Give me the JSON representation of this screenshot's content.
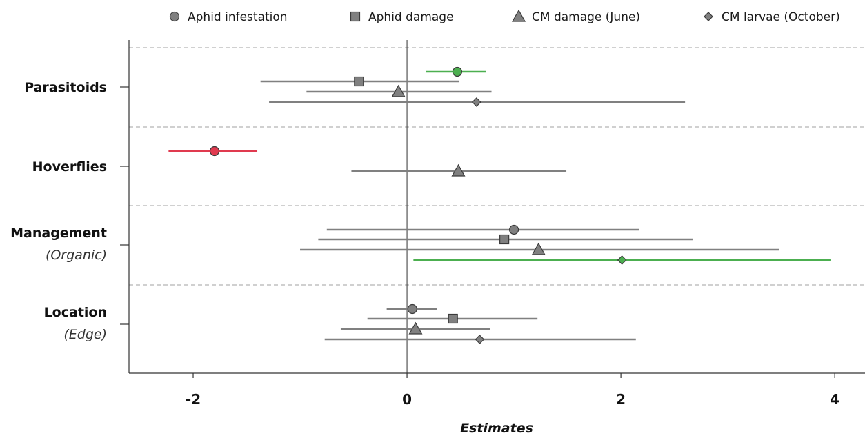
{
  "chart_data": {
    "type": "forest",
    "xlabel": "Estimates",
    "xlim": [
      -2.6,
      4.27
    ],
    "xticks": [
      -2,
      0,
      2,
      4
    ],
    "xtick_labels": [
      "-2",
      "0",
      "2",
      "4"
    ],
    "legend_position": "top",
    "legend": [
      {
        "name": "Aphid infestation",
        "marker": "circle"
      },
      {
        "name": "Aphid damage",
        "marker": "square"
      },
      {
        "name": "CM damage (June)",
        "marker": "triangle"
      },
      {
        "name": "CM larvae (October)",
        "marker": "diamond"
      }
    ],
    "colors": {
      "neutral": "#808080",
      "positive": "#4caf50",
      "negative": "#e03a4f"
    },
    "groups": [
      {
        "label": "Parasitoids",
        "sublabel": "",
        "estimates": [
          {
            "series": "Aphid infestation",
            "est": 0.47,
            "lo": 0.18,
            "hi": 0.74,
            "sig": "positive"
          },
          {
            "series": "Aphid damage",
            "est": -0.45,
            "lo": -1.37,
            "hi": 0.49,
            "sig": "neutral"
          },
          {
            "series": "CM damage (June)",
            "est": -0.08,
            "lo": -0.94,
            "hi": 0.79,
            "sig": "neutral"
          },
          {
            "series": "CM larvae (October)",
            "est": 0.65,
            "lo": -1.29,
            "hi": 2.6,
            "sig": "neutral"
          }
        ]
      },
      {
        "label": "Hoverflies",
        "sublabel": "",
        "estimates": [
          {
            "series": "Aphid infestation",
            "est": -1.8,
            "lo": -2.23,
            "hi": -1.4,
            "sig": "negative"
          },
          {
            "series": "CM damage (June)",
            "est": 0.48,
            "lo": -0.52,
            "hi": 1.49,
            "sig": "neutral"
          }
        ]
      },
      {
        "label": "Management",
        "sublabel": "(Organic)",
        "estimates": [
          {
            "series": "Aphid infestation",
            "est": 1.0,
            "lo": -0.75,
            "hi": 2.17,
            "sig": "neutral"
          },
          {
            "series": "Aphid damage",
            "est": 0.91,
            "lo": -0.83,
            "hi": 2.67,
            "sig": "neutral"
          },
          {
            "series": "CM damage (June)",
            "est": 1.23,
            "lo": -1.0,
            "hi": 3.48,
            "sig": "neutral"
          },
          {
            "series": "CM larvae (October)",
            "est": 2.01,
            "lo": 0.06,
            "hi": 3.96,
            "sig": "positive"
          }
        ]
      },
      {
        "label": "Location",
        "sublabel": "(Edge)",
        "estimates": [
          {
            "series": "Aphid infestation",
            "est": 0.05,
            "lo": -0.19,
            "hi": 0.28,
            "sig": "neutral"
          },
          {
            "series": "Aphid damage",
            "est": 0.43,
            "lo": -0.37,
            "hi": 1.22,
            "sig": "neutral"
          },
          {
            "series": "CM damage (June)",
            "est": 0.08,
            "lo": -0.62,
            "hi": 0.78,
            "sig": "neutral"
          },
          {
            "series": "CM larvae (October)",
            "est": 0.68,
            "lo": -0.77,
            "hi": 2.14,
            "sig": "neutral"
          }
        ]
      }
    ]
  }
}
